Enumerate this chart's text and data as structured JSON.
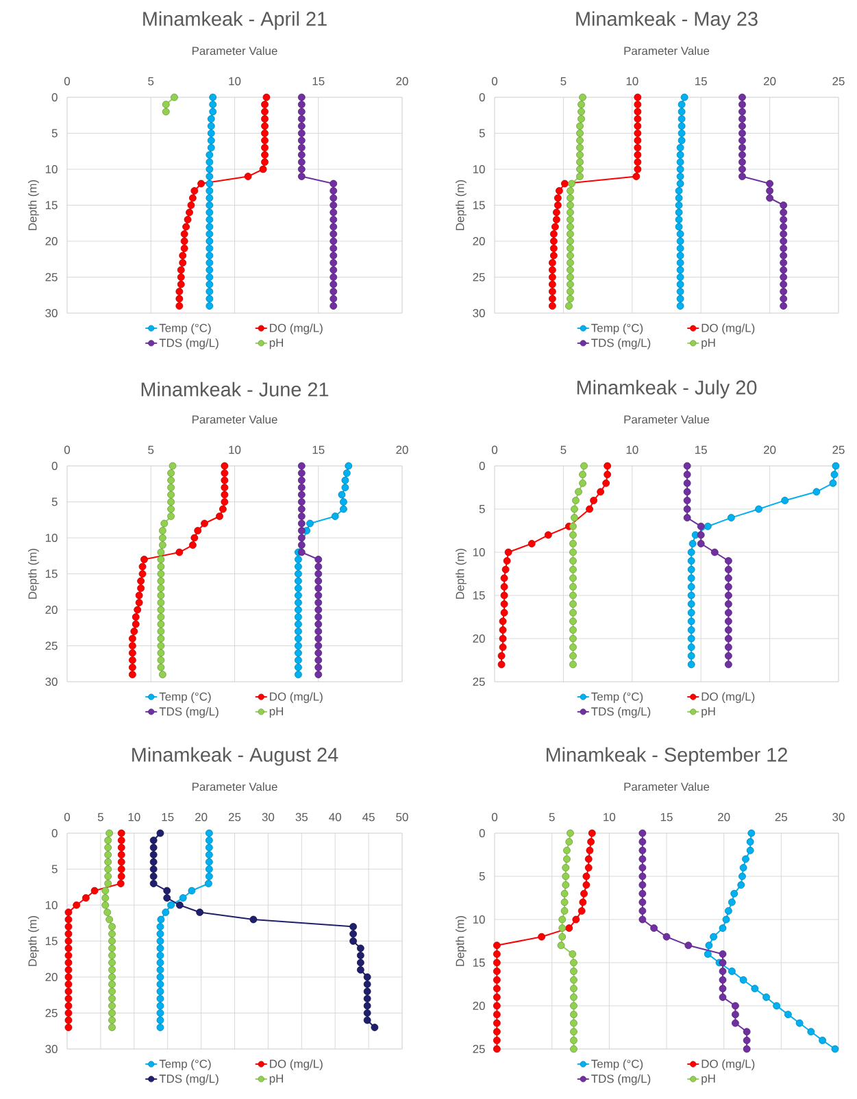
{
  "chart_data": [
    {
      "type": "line",
      "title": "Minamkeak - April 21",
      "xlabel": "Parameter Value",
      "ylabel": "Depth (m)",
      "xlim": [
        0,
        20
      ],
      "xticks": [
        0,
        5,
        10,
        15,
        20
      ],
      "ylim": [
        30,
        0
      ],
      "yticks": [
        0,
        5,
        10,
        15,
        20,
        25,
        30
      ],
      "grid": true,
      "legend": "bottom",
      "marker": "circle",
      "series": [
        {
          "name": "Temp (°C)",
          "color": "#00b0f0",
          "x": [
            8.7,
            8.7,
            8.7,
            8.6,
            8.6,
            8.6,
            8.6,
            8.6,
            8.5,
            8.5,
            8.5,
            8.5,
            8.5,
            8.5,
            8.5,
            8.5,
            8.5,
            8.5,
            8.5,
            8.5,
            8.5,
            8.5,
            8.5,
            8.5,
            8.5,
            8.5,
            8.5,
            8.5,
            8.5,
            8.5
          ],
          "values": [
            0,
            1,
            2,
            3,
            4,
            5,
            6,
            7,
            8,
            9,
            10,
            11,
            12,
            13,
            14,
            15,
            16,
            17,
            18,
            19,
            20,
            21,
            22,
            23,
            24,
            25,
            26,
            27,
            28,
            29
          ]
        },
        {
          "name": "DO (mg/L)",
          "color": "#ff0000",
          "x": [
            11.9,
            11.8,
            11.8,
            11.8,
            11.8,
            11.8,
            11.8,
            11.8,
            11.8,
            11.8,
            11.7,
            10.8,
            8.0,
            7.6,
            7.5,
            7.4,
            7.3,
            7.2,
            7.1,
            7.0,
            7.0,
            7.0,
            6.9,
            6.9,
            6.8,
            6.8,
            6.8,
            6.7,
            6.7,
            6.7
          ],
          "values": [
            0,
            1,
            2,
            3,
            4,
            5,
            6,
            7,
            8,
            9,
            10,
            11,
            12,
            13,
            14,
            15,
            16,
            17,
            18,
            19,
            20,
            21,
            22,
            23,
            24,
            25,
            26,
            27,
            28,
            29
          ]
        },
        {
          "name": "TDS (mg/L)",
          "color": "#7030a0",
          "x": [
            14.0,
            14.0,
            14.0,
            14.0,
            14.0,
            14.0,
            14.0,
            14.0,
            14.0,
            14.0,
            14.0,
            14.0,
            15.9,
            15.9,
            15.9,
            15.9,
            15.9,
            15.9,
            15.9,
            15.9,
            15.9,
            15.9,
            15.9,
            15.9,
            15.9,
            15.9,
            15.9,
            15.9,
            15.9,
            15.9
          ],
          "values": [
            0,
            1,
            2,
            3,
            4,
            5,
            6,
            7,
            8,
            9,
            10,
            11,
            12,
            13,
            14,
            15,
            16,
            17,
            18,
            19,
            20,
            21,
            22,
            23,
            24,
            25,
            26,
            27,
            28,
            29
          ]
        },
        {
          "name": "pH",
          "color": "#92d050",
          "x": [
            6.4,
            5.9,
            5.9
          ],
          "values": [
            0,
            1,
            2
          ]
        }
      ]
    },
    {
      "type": "line",
      "title": "Minamkeak - May 23",
      "xlabel": "Parameter Value",
      "ylabel": "Depth (m)",
      "xlim": [
        0,
        25
      ],
      "xticks": [
        0,
        5,
        10,
        15,
        20,
        25
      ],
      "ylim": [
        30,
        0
      ],
      "yticks": [
        0,
        5,
        10,
        15,
        20,
        25,
        30
      ],
      "grid": true,
      "legend": "bottom",
      "marker": "circle",
      "series": [
        {
          "name": "Temp (°C)",
          "color": "#00b0f0",
          "x": [
            13.8,
            13.6,
            13.6,
            13.6,
            13.6,
            13.6,
            13.6,
            13.5,
            13.5,
            13.5,
            13.5,
            13.5,
            13.5,
            13.4,
            13.4,
            13.4,
            13.4,
            13.4,
            13.4,
            13.5,
            13.5,
            13.5,
            13.5,
            13.5,
            13.5,
            13.5,
            13.5,
            13.5,
            13.5,
            13.5
          ],
          "values": [
            0,
            1,
            2,
            3,
            4,
            5,
            6,
            7,
            8,
            9,
            10,
            11,
            12,
            13,
            14,
            15,
            16,
            17,
            18,
            19,
            20,
            21,
            22,
            23,
            24,
            25,
            26,
            27,
            28,
            29
          ]
        },
        {
          "name": "DO (mg/L)",
          "color": "#ff0000",
          "x": [
            10.4,
            10.4,
            10.4,
            10.4,
            10.4,
            10.4,
            10.4,
            10.4,
            10.4,
            10.4,
            10.4,
            10.3,
            5.1,
            4.7,
            4.6,
            4.6,
            4.5,
            4.5,
            4.4,
            4.3,
            4.3,
            4.3,
            4.3,
            4.2,
            4.2,
            4.2,
            4.2,
            4.2,
            4.2,
            4.2
          ],
          "values": [
            0,
            1,
            2,
            3,
            4,
            5,
            6,
            7,
            8,
            9,
            10,
            11,
            12,
            13,
            14,
            15,
            16,
            17,
            18,
            19,
            20,
            21,
            22,
            23,
            24,
            25,
            26,
            27,
            28,
            29
          ]
        },
        {
          "name": "TDS (mg/L)",
          "color": "#7030a0",
          "x": [
            18.0,
            18.0,
            18.0,
            18.0,
            18.0,
            18.0,
            18.0,
            18.0,
            18.0,
            18.0,
            18.0,
            18.0,
            20.0,
            20.0,
            20.0,
            21.0,
            21.0,
            21.0,
            21.0,
            21.0,
            21.0,
            21.0,
            21.0,
            21.0,
            21.0,
            21.0,
            21.0,
            21.0,
            21.0,
            21.0
          ],
          "values": [
            0,
            1,
            2,
            3,
            4,
            5,
            6,
            7,
            8,
            9,
            10,
            11,
            12,
            13,
            14,
            15,
            16,
            17,
            18,
            19,
            20,
            21,
            22,
            23,
            24,
            25,
            26,
            27,
            28,
            29
          ]
        },
        {
          "name": "pH",
          "color": "#92d050",
          "x": [
            6.4,
            6.3,
            6.3,
            6.3,
            6.2,
            6.2,
            6.2,
            6.2,
            6.2,
            6.2,
            6.2,
            6.2,
            5.6,
            5.5,
            5.5,
            5.5,
            5.5,
            5.5,
            5.5,
            5.5,
            5.5,
            5.5,
            5.5,
            5.5,
            5.5,
            5.5,
            5.5,
            5.5,
            5.5,
            5.4
          ],
          "values": [
            0,
            1,
            2,
            3,
            4,
            5,
            6,
            7,
            8,
            9,
            10,
            11,
            12,
            13,
            14,
            15,
            16,
            17,
            18,
            19,
            20,
            21,
            22,
            23,
            24,
            25,
            26,
            27,
            28,
            29
          ]
        }
      ]
    },
    {
      "type": "line",
      "title": "Minamkeak - June 21",
      "xlabel": "Parameter Value",
      "ylabel": "Depth (m)",
      "xlim": [
        0,
        20
      ],
      "xticks": [
        0,
        5,
        10,
        15,
        20
      ],
      "ylim": [
        30,
        0
      ],
      "yticks": [
        0,
        5,
        10,
        15,
        20,
        25,
        30
      ],
      "grid": true,
      "legend": "bottom",
      "marker": "circle",
      "series": [
        {
          "name": "Temp (°C)",
          "color": "#00b0f0",
          "x": [
            16.8,
            16.7,
            16.6,
            16.6,
            16.4,
            16.5,
            16.5,
            16.0,
            14.5,
            14.3,
            null,
            null,
            13.8,
            13.8,
            13.8,
            13.8,
            13.8,
            13.8,
            13.8,
            13.8,
            13.8,
            13.8,
            13.8,
            13.8,
            13.8,
            13.8,
            13.8,
            13.8,
            13.8,
            13.8
          ],
          "values": [
            0,
            1,
            2,
            3,
            4,
            5,
            6,
            7,
            8,
            9,
            null,
            null,
            12,
            13,
            14,
            15,
            16,
            17,
            18,
            19,
            20,
            21,
            22,
            23,
            24,
            25,
            26,
            27,
            28,
            29
          ]
        },
        {
          "name": "DO (mg/L)",
          "color": "#ff0000",
          "x": [
            9.4,
            9.4,
            9.4,
            9.4,
            9.4,
            9.4,
            9.3,
            9.1,
            8.2,
            7.8,
            7.6,
            7.5,
            6.7,
            4.6,
            4.5,
            4.5,
            4.4,
            4.4,
            4.3,
            4.3,
            4.2,
            4.1,
            4.1,
            4.0,
            3.9,
            3.9,
            3.9,
            3.9,
            3.9,
            3.9
          ],
          "values": [
            0,
            1,
            2,
            3,
            4,
            5,
            6,
            7,
            8,
            9,
            10,
            11,
            12,
            13,
            14,
            15,
            16,
            17,
            18,
            19,
            20,
            21,
            22,
            23,
            24,
            25,
            26,
            27,
            28,
            29
          ]
        },
        {
          "name": "TDS (mg/L)",
          "color": "#7030a0",
          "x": [
            14.0,
            14.0,
            14.0,
            14.0,
            14.0,
            14.0,
            14.0,
            14.0,
            14.0,
            14.0,
            14.0,
            14.0,
            14.0,
            15.0,
            15.0,
            15.0,
            15.0,
            15.0,
            15.0,
            15.0,
            15.0,
            15.0,
            15.0,
            15.0,
            15.0,
            15.0,
            15.0,
            15.0,
            15.0,
            15.0
          ],
          "values": [
            0,
            1,
            2,
            3,
            4,
            5,
            6,
            7,
            8,
            9,
            10,
            11,
            12,
            13,
            14,
            15,
            16,
            17,
            18,
            19,
            20,
            21,
            22,
            23,
            24,
            25,
            26,
            27,
            28,
            29
          ]
        },
        {
          "name": "pH",
          "color": "#92d050",
          "x": [
            6.3,
            6.2,
            6.2,
            6.2,
            6.2,
            6.2,
            6.2,
            6.2,
            5.8,
            5.7,
            5.7,
            5.7,
            5.6,
            5.6,
            5.6,
            5.6,
            5.6,
            5.6,
            5.6,
            5.6,
            5.6,
            5.6,
            5.6,
            5.6,
            5.6,
            5.6,
            5.6,
            5.6,
            5.6,
            5.7
          ],
          "values": [
            0,
            1,
            2,
            3,
            4,
            5,
            6,
            7,
            8,
            9,
            10,
            11,
            12,
            13,
            14,
            15,
            16,
            17,
            18,
            19,
            20,
            21,
            22,
            23,
            24,
            25,
            26,
            27,
            28,
            29
          ]
        }
      ]
    },
    {
      "type": "line",
      "title": "Minamkeak - July 20",
      "xlabel": "Parameter Value",
      "ylabel": "Depth (m)",
      "xlim": [
        0,
        25
      ],
      "xticks": [
        0,
        5,
        10,
        15,
        20,
        25
      ],
      "ylim": [
        25,
        0
      ],
      "yticks": [
        0,
        5,
        10,
        15,
        20,
        25
      ],
      "grid": true,
      "legend": "bottom",
      "marker": "circle",
      "series": [
        {
          "name": "Temp (°C)",
          "color": "#00b0f0",
          "x": [
            24.8,
            24.7,
            24.6,
            23.4,
            21.1,
            19.2,
            17.2,
            15.5,
            14.6,
            14.4,
            14.3,
            14.3,
            14.3,
            14.3,
            14.3,
            14.3,
            14.3,
            14.3,
            14.3,
            14.3,
            14.3,
            14.3,
            14.3,
            14.3
          ],
          "values": [
            0,
            1,
            2,
            3,
            4,
            5,
            6,
            7,
            8,
            9,
            10,
            11,
            12,
            13,
            14,
            15,
            16,
            17,
            18,
            19,
            20,
            21,
            22,
            23
          ]
        },
        {
          "name": "DO (mg/L)",
          "color": "#ff0000",
          "x": [
            8.2,
            8.2,
            8.1,
            7.7,
            7.2,
            6.9,
            null,
            5.4,
            3.9,
            2.7,
            1.0,
            0.9,
            0.8,
            0.7,
            0.7,
            0.7,
            0.7,
            0.7,
            0.6,
            0.6,
            0.6,
            0.6,
            0.5,
            0.5
          ],
          "values": [
            0,
            1,
            2,
            3,
            4,
            5,
            null,
            7,
            8,
            9,
            10,
            11,
            12,
            13,
            14,
            15,
            16,
            17,
            18,
            19,
            20,
            21,
            22,
            23
          ]
        },
        {
          "name": "TDS (mg/L)",
          "color": "#7030a0",
          "x": [
            14.0,
            14.0,
            14.0,
            14.0,
            14.0,
            14.0,
            14.0,
            15.0,
            15.0,
            15.0,
            16.0,
            17.0,
            17.0,
            17.0,
            17.0,
            17.0,
            17.0,
            17.0,
            17.0,
            17.0,
            17.0,
            17.0,
            17.0,
            17.0
          ],
          "values": [
            0,
            1,
            2,
            3,
            4,
            5,
            6,
            7,
            8,
            9,
            10,
            11,
            12,
            13,
            14,
            15,
            16,
            17,
            18,
            19,
            20,
            21,
            22,
            23
          ]
        },
        {
          "name": "pH",
          "color": "#92d050",
          "x": [
            6.5,
            6.4,
            6.4,
            6.1,
            5.9,
            5.8,
            5.8,
            5.7,
            5.7,
            5.7,
            5.7,
            5.7,
            5.7,
            5.7,
            5.7,
            5.7,
            5.7,
            5.7,
            5.7,
            5.7,
            5.7,
            5.7,
            5.7,
            5.7
          ],
          "values": [
            0,
            1,
            2,
            3,
            4,
            5,
            6,
            7,
            8,
            9,
            10,
            11,
            12,
            13,
            14,
            15,
            16,
            17,
            18,
            19,
            20,
            21,
            22,
            23
          ]
        }
      ]
    },
    {
      "type": "line",
      "title": "Minamkeak - August 24",
      "xlabel": "Parameter Value",
      "ylabel": "Depth (m)",
      "xlim": [
        0,
        50
      ],
      "xticks": [
        0,
        5,
        10,
        15,
        20,
        25,
        30,
        35,
        40,
        45,
        50
      ],
      "ylim": [
        30,
        0
      ],
      "yticks": [
        0,
        5,
        10,
        15,
        20,
        25,
        30
      ],
      "grid": true,
      "legend": "bottom",
      "marker": "circle",
      "series": [
        {
          "name": "Temp (°C)",
          "color": "#00b0f0",
          "x": [
            21.2,
            21.2,
            21.2,
            21.2,
            21.2,
            21.2,
            21.2,
            21.1,
            18.6,
            17.3,
            15.5,
            14.7,
            14.0,
            13.9,
            13.9,
            13.9,
            13.9,
            13.9,
            13.9,
            13.9,
            13.9,
            13.9,
            13.9,
            13.9,
            13.9,
            13.9,
            13.9,
            13.9
          ],
          "values": [
            0,
            1,
            2,
            3,
            4,
            5,
            6,
            7,
            8,
            9,
            10,
            11,
            12,
            13,
            14,
            15,
            16,
            17,
            18,
            19,
            20,
            21,
            22,
            23,
            24,
            25,
            26,
            27
          ]
        },
        {
          "name": "DO (mg/L)",
          "color": "#ff0000",
          "x": [
            8.1,
            8.1,
            8.1,
            8.1,
            8.1,
            8.1,
            8.1,
            8.0,
            4.1,
            2.8,
            1.4,
            0.2,
            0.2,
            0.2,
            0.2,
            0.2,
            0.2,
            0.2,
            0.2,
            0.2,
            0.2,
            0.2,
            0.2,
            0.2,
            0.2,
            0.2,
            0.2,
            0.2
          ],
          "values": [
            0,
            1,
            2,
            3,
            4,
            5,
            6,
            7,
            8,
            9,
            10,
            11,
            12,
            13,
            14,
            15,
            16,
            17,
            18,
            19,
            20,
            21,
            22,
            23,
            24,
            25,
            26,
            27
          ]
        },
        {
          "name": "TDS (mg/L)",
          "color": "#1f1f6b",
          "x": [
            13.9,
            12.9,
            12.9,
            12.9,
            12.9,
            12.9,
            12.9,
            12.9,
            14.9,
            14.9,
            16.8,
            19.8,
            27.8,
            42.7,
            42.7,
            42.7,
            43.8,
            43.8,
            43.8,
            43.8,
            44.8,
            44.8,
            44.8,
            44.8,
            44.8,
            44.8,
            44.8,
            45.9
          ],
          "values": [
            0,
            1,
            2,
            3,
            4,
            5,
            6,
            7,
            8,
            9,
            10,
            11,
            12,
            13,
            14,
            15,
            16,
            17,
            18,
            19,
            20,
            21,
            22,
            23,
            24,
            25,
            26,
            27
          ]
        },
        {
          "name": "pH",
          "color": "#92d050",
          "x": [
            6.3,
            6.1,
            6.1,
            6.1,
            6.1,
            6.1,
            6.1,
            6.1,
            5.7,
            5.7,
            5.7,
            6.0,
            6.3,
            6.7,
            6.7,
            6.7,
            6.7,
            6.7,
            6.7,
            6.7,
            6.7,
            6.7,
            6.7,
            6.7,
            6.7,
            6.7,
            6.7,
            6.7
          ],
          "values": [
            0,
            1,
            2,
            3,
            4,
            5,
            6,
            7,
            8,
            9,
            10,
            11,
            12,
            13,
            14,
            15,
            16,
            17,
            18,
            19,
            20,
            21,
            22,
            23,
            24,
            25,
            26,
            27
          ]
        }
      ]
    },
    {
      "type": "line",
      "title": "Minamkeak - September 12",
      "xlabel": "Parameter Value",
      "ylabel": "Depth (m)",
      "xlim": [
        0,
        30
      ],
      "xticks": [
        0,
        5,
        10,
        15,
        20,
        25,
        30
      ],
      "ylim": [
        25,
        0
      ],
      "yticks": [
        0,
        5,
        10,
        15,
        20,
        25
      ],
      "grid": true,
      "legend": "bottom",
      "marker": "circle",
      "series": [
        {
          "name": "Temp (°C)",
          "color": "#00b0f0",
          "x": [
            22.4,
            22.3,
            22.3,
            21.9,
            21.7,
            21.6,
            21.5,
            20.9,
            20.7,
            20.4,
            20.2,
            19.9,
            19.1,
            18.7,
            18.6,
            19.6,
            20.7,
            21.7,
            22.7,
            23.7,
            24.6,
            25.6,
            26.6,
            27.6,
            28.6,
            29.7
          ],
          "values": [
            0,
            1,
            2,
            3,
            4,
            5,
            6,
            7,
            8,
            9,
            10,
            11,
            12,
            13,
            14,
            15,
            16,
            17,
            18,
            19,
            20,
            21,
            22,
            23,
            24,
            25
          ]
        },
        {
          "name": "DO (mg/L)",
          "color": "#ff0000",
          "x": [
            8.5,
            8.4,
            8.3,
            8.2,
            8.2,
            8.0,
            8.0,
            7.8,
            7.7,
            7.6,
            7.1,
            6.5,
            4.1,
            0.2,
            0.2,
            0.2,
            0.2,
            0.2,
            0.2,
            0.2,
            0.2,
            0.2,
            0.2,
            0.2,
            0.2,
            0.2
          ],
          "values": [
            0,
            1,
            2,
            3,
            4,
            5,
            6,
            7,
            8,
            9,
            10,
            11,
            12,
            13,
            14,
            15,
            16,
            17,
            18,
            19,
            20,
            21,
            22,
            23,
            24,
            25
          ]
        },
        {
          "name": "TDS (mg/L)",
          "color": "#7030a0",
          "x": [
            12.9,
            12.9,
            12.9,
            12.9,
            12.9,
            12.9,
            12.9,
            12.9,
            12.9,
            12.9,
            12.9,
            13.9,
            15.0,
            16.9,
            19.9,
            19.9,
            19.9,
            19.9,
            19.9,
            19.9,
            21.0,
            21.0,
            21.0,
            22.0,
            22.0,
            22.0
          ],
          "values": [
            0,
            1,
            2,
            3,
            4,
            5,
            6,
            7,
            8,
            9,
            10,
            11,
            12,
            13,
            14,
            15,
            16,
            17,
            18,
            19,
            20,
            21,
            22,
            23,
            24,
            25
          ]
        },
        {
          "name": "pH",
          "color": "#92d050",
          "x": [
            6.6,
            6.5,
            6.3,
            6.3,
            6.2,
            6.2,
            6.2,
            6.1,
            6.1,
            6.1,
            5.9,
            5.9,
            5.9,
            5.8,
            6.8,
            6.9,
            6.9,
            6.9,
            6.9,
            6.9,
            6.9,
            6.9,
            6.9,
            6.9,
            6.9,
            6.9
          ],
          "values": [
            0,
            1,
            2,
            3,
            4,
            5,
            6,
            7,
            8,
            9,
            10,
            11,
            12,
            13,
            14,
            15,
            16,
            17,
            18,
            19,
            20,
            21,
            22,
            23,
            24,
            25
          ]
        }
      ]
    }
  ]
}
